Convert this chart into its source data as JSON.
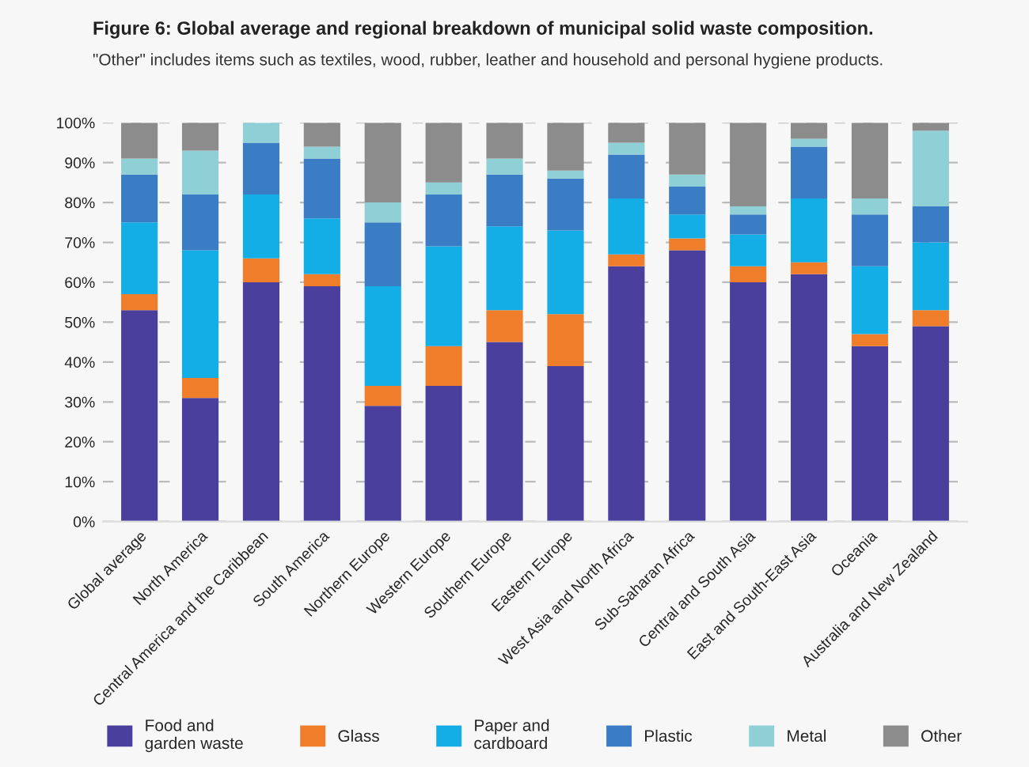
{
  "chart_data": {
    "type": "bar",
    "stacked": true,
    "title": "Figure 6: Global average and regional breakdown of municipal solid waste composition.",
    "subtitle": "\"Other\" includes items such as textiles, wood, rubber, leather and household and personal hygiene products.",
    "categories": [
      "Global average",
      "North America",
      "Central America and the Caribbean",
      "South America",
      "Northern Europe",
      "Western Europe",
      "Southern Europe",
      "Eastern Europe",
      "West Asia and North Africa",
      "Sub-Saharan Africa",
      "Central and South Asia",
      "East and South-East Asia",
      "Oceania",
      "Australia and New Zealand"
    ],
    "series": [
      {
        "name": "Food and\ngarden waste",
        "color": "#4b3f9e",
        "values": [
          53,
          31,
          60,
          59,
          29,
          34,
          45,
          39,
          64,
          68,
          60,
          62,
          44,
          49
        ]
      },
      {
        "name": "Glass",
        "color": "#f07d2a",
        "values": [
          4,
          5,
          6,
          3,
          5,
          10,
          8,
          13,
          3,
          3,
          4,
          3,
          3,
          4
        ]
      },
      {
        "name": "Paper and\ncardboard",
        "color": "#14aee6",
        "values": [
          18,
          32,
          16,
          14,
          25,
          25,
          21,
          21,
          14,
          6,
          8,
          16,
          17,
          17
        ]
      },
      {
        "name": "Plastic",
        "color": "#3b7dc4",
        "values": [
          12,
          14,
          13,
          15,
          16,
          13,
          13,
          13,
          11,
          7,
          5,
          13,
          13,
          9
        ]
      },
      {
        "name": "Metal",
        "color": "#8fcfd6",
        "values": [
          4,
          11,
          5,
          3,
          5,
          3,
          4,
          2,
          3,
          3,
          2,
          2,
          4,
          19
        ]
      },
      {
        "name": "Other",
        "color": "#8c8c8c",
        "values": [
          9,
          7,
          0,
          6,
          20,
          15,
          9,
          12,
          5,
          13,
          21,
          4,
          19,
          2
        ]
      }
    ],
    "ylim": [
      0,
      100
    ],
    "yticks": [
      {
        "value": 0,
        "label": "0%"
      },
      {
        "value": 10,
        "label": "10%"
      },
      {
        "value": 20,
        "label": "20%"
      },
      {
        "value": 30,
        "label": "30%"
      },
      {
        "value": 40,
        "label": "40%"
      },
      {
        "value": 50,
        "label": "50%"
      },
      {
        "value": 60,
        "label": "60%"
      },
      {
        "value": 70,
        "label": "70%"
      },
      {
        "value": 80,
        "label": "80%"
      },
      {
        "value": 90,
        "label": "90%"
      },
      {
        "value": 100,
        "label": "100%"
      }
    ],
    "grid": "y",
    "legend": "bottom"
  }
}
